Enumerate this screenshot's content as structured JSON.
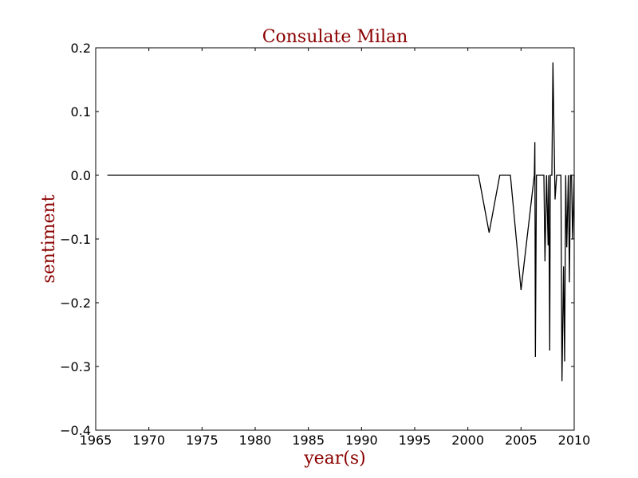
{
  "colors": {
    "title": "#8b0000",
    "axis_label": "#8b0000",
    "line": "#000000",
    "frame": "#000000"
  },
  "chart_data": {
    "type": "line",
    "title": "Consulate Milan",
    "xlabel": "year(s)",
    "ylabel": "sentiment",
    "xlim": [
      1965,
      2010
    ],
    "ylim": [
      -0.4,
      0.2
    ],
    "xticks": [
      1965,
      1970,
      1975,
      1980,
      1985,
      1990,
      1995,
      2000,
      2005,
      2010
    ],
    "xtick_labels": [
      "1965",
      "1970",
      "1975",
      "1980",
      "1985",
      "1990",
      "1995",
      "2000",
      "2005",
      "2010"
    ],
    "yticks": [
      -0.4,
      -0.3,
      -0.2,
      -0.1,
      0.0,
      0.1,
      0.2
    ],
    "ytick_labels": [
      "−0.4",
      "−0.3",
      "−0.2",
      "−0.1",
      "0.0",
      "0.1",
      "0.2"
    ],
    "grid": false,
    "legend": "none",
    "series": [
      {
        "x": [
          1966.1,
          2001.0,
          2002.0,
          2003.0,
          2004.0,
          2005.0,
          2006.25,
          2006.3,
          2006.35,
          2006.45,
          2007.0,
          2007.15,
          2007.25,
          2007.4,
          2007.55,
          2007.6,
          2007.7,
          2007.75,
          2007.9,
          2008.0,
          2008.2,
          2008.35,
          2008.5,
          2008.75,
          2008.85,
          2009.0,
          2009.1,
          2009.2,
          2009.3,
          2009.45,
          2009.55,
          2009.65,
          2009.75,
          2009.85,
          2010.0
        ],
        "values": [
          0.0,
          0.0,
          -0.09,
          0.0,
          0.0,
          -0.18,
          0.0,
          0.052,
          -0.285,
          0.0,
          0.0,
          0.0,
          -0.135,
          0.0,
          -0.11,
          0.0,
          -0.275,
          0.0,
          0.0,
          0.177,
          -0.038,
          0.0,
          0.0,
          0.0,
          -0.323,
          -0.143,
          -0.292,
          0.0,
          -0.113,
          0.0,
          -0.168,
          0.0,
          0.0,
          -0.1,
          0.0
        ]
      }
    ]
  }
}
